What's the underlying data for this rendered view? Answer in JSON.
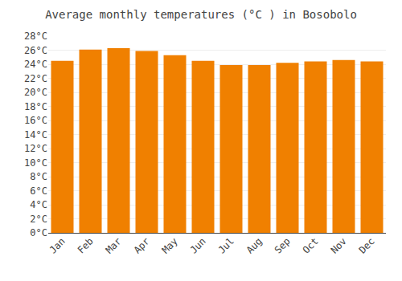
{
  "chart_data": {
    "type": "bar",
    "title": "Average monthly temperatures (°C ) in Bosobolo",
    "categories": [
      "Jan",
      "Feb",
      "Mar",
      "Apr",
      "May",
      "Jun",
      "Jul",
      "Aug",
      "Sep",
      "Oct",
      "Nov",
      "Dec"
    ],
    "values": [
      24.5,
      26.1,
      26.3,
      25.9,
      25.3,
      24.5,
      23.9,
      23.9,
      24.2,
      24.4,
      24.6,
      24.4
    ],
    "color": "#F08000",
    "ylim": [
      0,
      28
    ],
    "yticks": [
      {
        "value": 0,
        "label": "0°C"
      },
      {
        "value": 2,
        "label": "2°C"
      },
      {
        "value": 4,
        "label": "4°C"
      },
      {
        "value": 6,
        "label": "6°C"
      },
      {
        "value": 8,
        "label": "8°C"
      },
      {
        "value": 10,
        "label": "10°C"
      },
      {
        "value": 12,
        "label": "12°C"
      },
      {
        "value": 14,
        "label": "14°C"
      },
      {
        "value": 16,
        "label": "16°C"
      },
      {
        "value": 18,
        "label": "18°C"
      },
      {
        "value": 20,
        "label": "20°C"
      },
      {
        "value": 22,
        "label": "22°C"
      },
      {
        "value": 24,
        "label": "24°C"
      },
      {
        "value": 26,
        "label": "26°C"
      },
      {
        "value": 28,
        "label": "28°C"
      }
    ],
    "grid": true
  }
}
